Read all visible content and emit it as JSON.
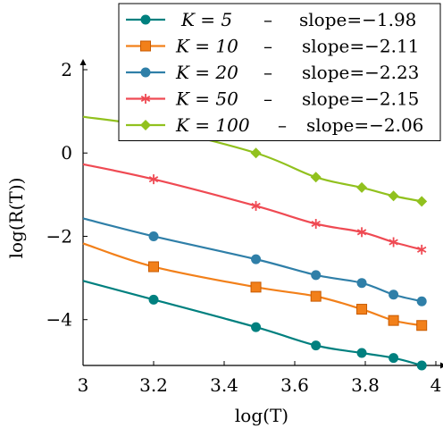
{
  "chart_data": {
    "type": "line",
    "xlabel": "log(T)",
    "ylabel": "log(R(T))",
    "xlim": [
      3,
      4
    ],
    "ylim": [
      -5.1,
      2
    ],
    "x_ticks": [
      3,
      3.2,
      3.4,
      3.6,
      3.8,
      4
    ],
    "x_tick_labels": [
      "3",
      "3.2",
      "3.4",
      "3.6",
      "3.8",
      "4"
    ],
    "y_ticks": [
      -4,
      -2,
      0,
      2
    ],
    "y_tick_labels": [
      "−4",
      "−2",
      "0",
      "2"
    ],
    "legend_position": "top-right",
    "series": [
      {
        "name": "K = 5",
        "label": "K = 5   –   slope=−1.98",
        "color": "#00807f",
        "marker": "circle",
        "points": [
          {
            "x": 3.0,
            "y": -3.07,
            "marked": false
          },
          {
            "x": 3.2,
            "y": -3.52,
            "marked": true
          },
          {
            "x": 3.49,
            "y": -4.18,
            "marked": true
          },
          {
            "x": 3.66,
            "y": -4.62,
            "marked": true
          },
          {
            "x": 3.79,
            "y": -4.8,
            "marked": true
          },
          {
            "x": 3.88,
            "y": -4.92,
            "marked": true
          },
          {
            "x": 3.96,
            "y": -5.1,
            "marked": true
          }
        ]
      },
      {
        "name": "K = 10",
        "label": "K = 10   –   slope=−2.11",
        "color": "#f2801a",
        "marker": "square",
        "points": [
          {
            "x": 3.0,
            "y": -2.17,
            "marked": false
          },
          {
            "x": 3.2,
            "y": -2.73,
            "marked": true
          },
          {
            "x": 3.49,
            "y": -3.22,
            "marked": true
          },
          {
            "x": 3.66,
            "y": -3.44,
            "marked": true
          },
          {
            "x": 3.79,
            "y": -3.75,
            "marked": true
          },
          {
            "x": 3.88,
            "y": -4.02,
            "marked": true
          },
          {
            "x": 3.96,
            "y": -4.14,
            "marked": true
          }
        ]
      },
      {
        "name": "K = 20",
        "label": "K = 20   –   slope=−2.23",
        "color": "#2f7fa8",
        "marker": "circle",
        "points": [
          {
            "x": 3.0,
            "y": -1.57,
            "marked": false
          },
          {
            "x": 3.2,
            "y": -2.0,
            "marked": true
          },
          {
            "x": 3.49,
            "y": -2.55,
            "marked": true
          },
          {
            "x": 3.66,
            "y": -2.93,
            "marked": true
          },
          {
            "x": 3.79,
            "y": -3.12,
            "marked": true
          },
          {
            "x": 3.88,
            "y": -3.4,
            "marked": true
          },
          {
            "x": 3.96,
            "y": -3.56,
            "marked": true
          }
        ]
      },
      {
        "name": "K = 50",
        "label": "K = 50   –   slope=−2.15",
        "color": "#ef4a53",
        "marker": "star",
        "points": [
          {
            "x": 3.0,
            "y": -0.27,
            "marked": false
          },
          {
            "x": 3.2,
            "y": -0.63,
            "marked": true
          },
          {
            "x": 3.49,
            "y": -1.27,
            "marked": true
          },
          {
            "x": 3.66,
            "y": -1.7,
            "marked": true
          },
          {
            "x": 3.79,
            "y": -1.9,
            "marked": true
          },
          {
            "x": 3.88,
            "y": -2.14,
            "marked": true
          },
          {
            "x": 3.96,
            "y": -2.32,
            "marked": true
          }
        ]
      },
      {
        "name": "K = 100",
        "label": "K = 100   –   slope=−2.06",
        "color": "#91c11e",
        "marker": "diamond",
        "points": [
          {
            "x": 3.0,
            "y": 0.87,
            "marked": false
          },
          {
            "x": 3.2,
            "y": 0.62,
            "marked": false
          },
          {
            "x": 3.49,
            "y": 0.0,
            "marked": true
          },
          {
            "x": 3.66,
            "y": -0.58,
            "marked": true
          },
          {
            "x": 3.79,
            "y": -0.83,
            "marked": true
          },
          {
            "x": 3.88,
            "y": -1.03,
            "marked": true
          },
          {
            "x": 3.96,
            "y": -1.16,
            "marked": true
          }
        ]
      }
    ],
    "legend": [
      {
        "k_label": "K = 5",
        "dash": "–",
        "slope_label": "slope=−1.98"
      },
      {
        "k_label": "K = 10",
        "dash": "–",
        "slope_label": "slope=−2.11"
      },
      {
        "k_label": "K = 20",
        "dash": "–",
        "slope_label": "slope=−2.23"
      },
      {
        "k_label": "K = 50",
        "dash": "–",
        "slope_label": "slope=−2.15"
      },
      {
        "k_label": "K = 100",
        "dash": "–",
        "slope_label": "slope=−2.06"
      }
    ]
  }
}
